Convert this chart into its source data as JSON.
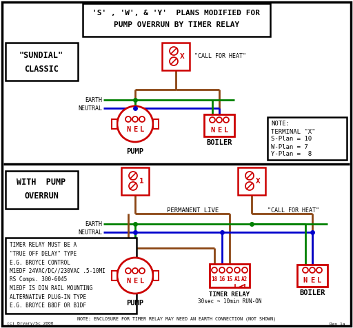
{
  "title_line1": "'S' , 'W', & 'Y'  PLANS MODIFIED FOR",
  "title_line2": "PUMP OVERRUN BY TIMER RELAY",
  "bg_color": "#ffffff",
  "red": "#cc0000",
  "green": "#008000",
  "blue": "#0000cc",
  "brown": "#8B4513",
  "black": "#000000",
  "section1_label_1": "\"SUNDIAL\"",
  "section1_label_2": "CLASSIC",
  "section2_label_1": "WITH  PUMP",
  "section2_label_2": "OVERRUN",
  "note_text": "NOTE:\nTERMINAL \"X\"\nS-Plan = 10\nW-Plan = 7\nY-Plan =  8",
  "timer_note_lines": [
    "TIMER RELAY MUST BE A",
    "\"TRUE OFF DELAY\" TYPE",
    "E.G. BROYCE CONTROL",
    "M1EDF 24VAC/DC//230VAC .5-10MI",
    "RS Comps. 300-6045",
    "M1EDF IS DIN RAIL MOUNTING",
    "ALTERNATIVE PLUG-IN TYPE",
    "E.G. BROYCE B8DF OR B1DF"
  ],
  "bottom_note": "NOTE: ENCLOSURE FOR TIMER RELAY MAY NEED AN EARTH CONNECTION (NOT SHOWN)",
  "timer_label_1": "TIMER RELAY",
  "timer_label_2": "30sec ~ 10min RUN-ON",
  "pump_label": "PUMP",
  "boiler_label": "BOILER",
  "copyright": "(c) Brvary/Sc 2000",
  "revision": "Rev 1a"
}
